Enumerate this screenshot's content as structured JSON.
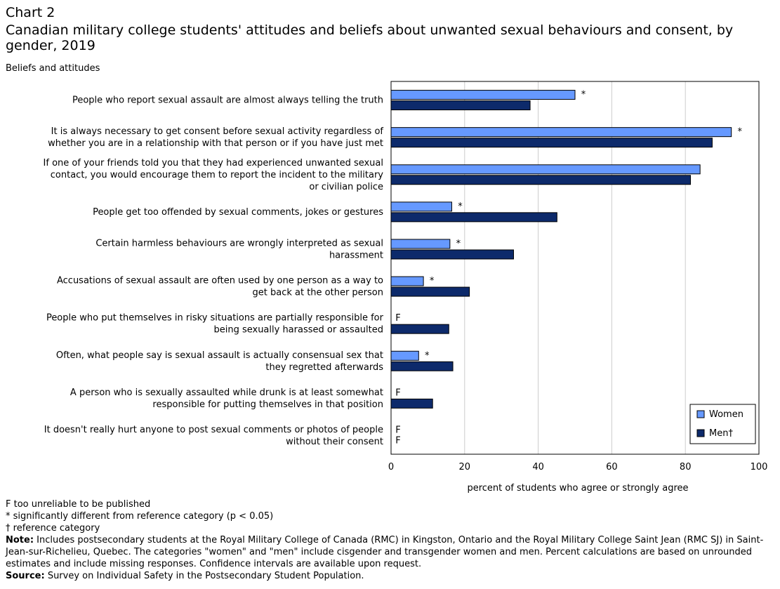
{
  "chart_number": "Chart 2",
  "title": "Canadian military college students' attitudes and beliefs about unwanted sexual behaviours and consent, by gender, 2019",
  "chart_data": {
    "type": "bar",
    "orientation": "horizontal",
    "ylabel": "Beliefs and attitudes",
    "xlabel": "percent of students who agree or strongly agree",
    "xlim": [
      0,
      100
    ],
    "xticks": [
      0,
      20,
      40,
      60,
      80,
      100
    ],
    "grid": true,
    "legend_position": "bottom-right",
    "categories": [
      [
        "People who report sexual assault are almost always telling the truth"
      ],
      [
        "It is always necessary to get consent before sexual activity regardless of",
        "whether you are in a relationship with that person or if you have just met"
      ],
      [
        "If one of your friends told you that they had experienced unwanted sexual",
        "contact, you would encourage them to report the incident to the military",
        "or civilian police"
      ],
      [
        "People get too offended by sexual comments, jokes or gestures"
      ],
      [
        "Certain harmless behaviours are wrongly interpreted as sexual",
        "harassment"
      ],
      [
        "Accusations of sexual assault are often used by one person as a way to",
        "get back at the other person"
      ],
      [
        "People who put themselves in risky situations are partially responsible for",
        "being sexually harassed or assaulted"
      ],
      [
        "Often, what people say is sexual assault is actually consensual sex that",
        "they regretted afterwards"
      ],
      [
        "A person who is sexually assaulted while drunk is at least somewhat",
        "responsible for putting themselves in that position"
      ],
      [
        "It doesn't really hurt anyone to post sexual comments or photos of people",
        "without their consent"
      ]
    ],
    "series": [
      {
        "name": "Women",
        "color": "#6699ff",
        "values": [
          50,
          92.5,
          84,
          16.5,
          16,
          8.8,
          null,
          7.5,
          null,
          null
        ],
        "markers": [
          "*",
          "*",
          "",
          "*",
          "*",
          "*",
          "F",
          "*",
          "F",
          "F"
        ]
      },
      {
        "name": "Men†",
        "color": "#0d2a6b",
        "values": [
          37.8,
          87.3,
          81.4,
          45.1,
          33.3,
          21.3,
          15.7,
          16.8,
          11.3,
          null
        ],
        "markers": [
          "",
          "",
          "",
          "",
          "",
          "",
          "",
          "",
          "",
          "F"
        ]
      }
    ]
  },
  "notes": {
    "f_line": "F too unreliable to be published",
    "star_line": "* significantly different from reference category (p < 0.05)",
    "dagger_line": "† reference category",
    "note_label": "Note:",
    "note_text": " Includes postsecondary students at the Royal Military College of Canada (RMC) in Kingston, Ontario and the Royal Military College Saint Jean (RMC SJ) in Saint-Jean-sur-Richelieu, Quebec. The categories \"women\" and \"men\" include cisgender and transgender women and men. Percent calculations are based on unrounded estimates and include missing responses. Confidence intervals are available upon request.",
    "source_label": "Source:",
    "source_text": " Survey on Individual Safety in the Postsecondary Student Population."
  }
}
